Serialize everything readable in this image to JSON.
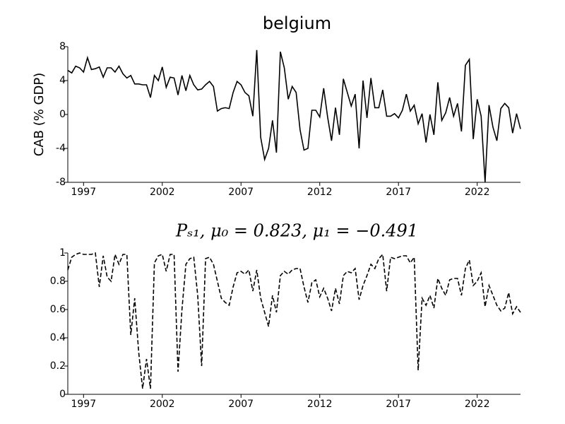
{
  "chart_data": [
    {
      "type": "line",
      "title": "belgium",
      "ylabel": "CAB (% GDP)",
      "color": "#000000",
      "linestyle": "solid",
      "xlim": [
        1996,
        2024.75
      ],
      "xticks": [
        1997,
        2002,
        2007,
        2012,
        2017,
        2022
      ],
      "ylim": [
        -8,
        8
      ],
      "yticks": [
        -8,
        -4,
        0,
        4,
        8
      ],
      "x": [
        1996,
        1996.25,
        1996.5,
        1996.75,
        1997,
        1997.25,
        1997.5,
        1997.75,
        1998,
        1998.25,
        1998.5,
        1998.75,
        1999,
        1999.25,
        1999.5,
        1999.75,
        2000,
        2000.25,
        2000.5,
        2000.75,
        2001,
        2001.25,
        2001.5,
        2001.75,
        2002,
        2002.25,
        2002.5,
        2002.75,
        2003,
        2003.25,
        2003.5,
        2003.75,
        2004,
        2004.25,
        2004.5,
        2004.75,
        2005,
        2005.25,
        2005.5,
        2005.75,
        2006,
        2006.25,
        2006.5,
        2006.75,
        2007,
        2007.25,
        2007.5,
        2007.75,
        2008,
        2008.25,
        2008.5,
        2008.75,
        2009,
        2009.25,
        2009.5,
        2009.75,
        2010,
        2010.25,
        2010.5,
        2010.75,
        2011,
        2011.25,
        2011.5,
        2011.75,
        2012,
        2012.25,
        2012.5,
        2012.75,
        2013,
        2013.25,
        2013.5,
        2013.75,
        2014,
        2014.25,
        2014.5,
        2014.75,
        2015,
        2015.25,
        2015.5,
        2015.75,
        2016,
        2016.25,
        2016.5,
        2016.75,
        2017,
        2017.25,
        2017.5,
        2017.75,
        2018,
        2018.25,
        2018.5,
        2018.75,
        2019,
        2019.25,
        2019.5,
        2019.75,
        2020,
        2020.25,
        2020.5,
        2020.75,
        2021,
        2021.25,
        2021.5,
        2021.75,
        2022,
        2022.25,
        2022.5,
        2022.75,
        2023,
        2023.25,
        2023.5,
        2023.75,
        2024,
        2024.25,
        2024.5,
        2024.75
      ],
      "values": [
        5.2,
        4.9,
        5.7,
        5.5,
        5.0,
        6.7,
        5.3,
        5.4,
        5.6,
        4.4,
        5.5,
        5.5,
        5.0,
        5.7,
        4.8,
        4.3,
        4.6,
        3.6,
        3.6,
        3.5,
        3.5,
        2.0,
        4.6,
        4.0,
        5.6,
        3.2,
        4.4,
        4.3,
        2.3,
        4.6,
        2.8,
        4.6,
        3.5,
        2.9,
        3.0,
        3.5,
        3.9,
        3.3,
        0.4,
        0.7,
        0.8,
        0.7,
        2.6,
        3.9,
        3.5,
        2.6,
        2.2,
        -0.2,
        7.6,
        -2.7,
        -5.3,
        -4.0,
        -0.7,
        -4.5,
        7.4,
        5.5,
        1.8,
        3.3,
        2.6,
        -1.8,
        -4.2,
        -4.0,
        0.5,
        0.5,
        -0.3,
        3.1,
        -0.3,
        -3.1,
        0.8,
        -2.4,
        4.2,
        2.6,
        1.0,
        2.4,
        -4.0,
        4.0,
        -0.4,
        4.3,
        0.8,
        0.8,
        2.9,
        -0.2,
        -0.2,
        0.1,
        -0.4,
        0.5,
        2.4,
        0.4,
        1.1,
        -1.1,
        0.1,
        -3.3,
        0.0,
        -2.4,
        3.8,
        -0.7,
        0.2,
        2.0,
        -0.2,
        1.3,
        -2.0,
        5.8,
        6.5,
        -2.9,
        1.8,
        -0.2,
        -8.0,
        1.1,
        -1.5,
        -3.1,
        0.7,
        1.3,
        0.8,
        -2.2,
        0.1,
        -1.7
      ]
    },
    {
      "type": "line",
      "title": "Pₛ₁, μ₀ = 0.823, μ₁ = −0.491",
      "color": "#000000",
      "linestyle": "dashed",
      "xlim": [
        1996,
        2024.75
      ],
      "xticks": [
        1997,
        2002,
        2007,
        2012,
        2017,
        2022
      ],
      "ylim": [
        0,
        1
      ],
      "yticks": [
        0,
        0.2,
        0.4,
        0.6,
        0.8,
        1
      ],
      "x": [
        1996,
        1996.25,
        1996.5,
        1996.75,
        1997,
        1997.25,
        1997.5,
        1997.75,
        1998,
        1998.25,
        1998.5,
        1998.75,
        1999,
        1999.25,
        1999.5,
        1999.75,
        2000,
        2000.25,
        2000.5,
        2000.75,
        2001,
        2001.25,
        2001.5,
        2001.75,
        2002,
        2002.25,
        2002.5,
        2002.75,
        2003,
        2003.25,
        2003.5,
        2003.75,
        2004,
        2004.25,
        2004.5,
        2004.75,
        2005,
        2005.25,
        2005.5,
        2005.75,
        2006,
        2006.25,
        2006.5,
        2006.75,
        2007,
        2007.25,
        2007.5,
        2007.75,
        2008,
        2008.25,
        2008.5,
        2008.75,
        2009,
        2009.25,
        2009.5,
        2009.75,
        2010,
        2010.25,
        2010.5,
        2010.75,
        2011,
        2011.25,
        2011.5,
        2011.75,
        2012,
        2012.25,
        2012.5,
        2012.75,
        2013,
        2013.25,
        2013.5,
        2013.75,
        2014,
        2014.25,
        2014.5,
        2014.75,
        2015,
        2015.25,
        2015.5,
        2015.75,
        2016,
        2016.25,
        2016.5,
        2016.75,
        2017,
        2017.25,
        2017.5,
        2017.75,
        2018,
        2018.25,
        2018.5,
        2018.75,
        2019,
        2019.25,
        2019.5,
        2019.75,
        2020,
        2020.25,
        2020.5,
        2020.75,
        2021,
        2021.25,
        2021.5,
        2021.75,
        2022,
        2022.25,
        2022.5,
        2022.75,
        2023,
        2023.25,
        2023.5,
        2023.75,
        2024,
        2024.25,
        2024.5,
        2024.75
      ],
      "values": [
        0.88,
        0.97,
        0.99,
        1.0,
        0.99,
        0.99,
        0.99,
        1.0,
        0.76,
        0.98,
        0.83,
        0.8,
        0.99,
        0.92,
        0.99,
        0.99,
        0.42,
        0.68,
        0.3,
        0.04,
        0.25,
        0.04,
        0.93,
        0.98,
        0.99,
        0.87,
        0.99,
        0.99,
        0.16,
        0.6,
        0.92,
        0.96,
        0.97,
        0.7,
        0.2,
        0.96,
        0.97,
        0.92,
        0.8,
        0.68,
        0.65,
        0.63,
        0.76,
        0.86,
        0.87,
        0.85,
        0.88,
        0.73,
        0.88,
        0.68,
        0.58,
        0.48,
        0.7,
        0.58,
        0.84,
        0.87,
        0.85,
        0.88,
        0.89,
        0.89,
        0.76,
        0.65,
        0.79,
        0.81,
        0.69,
        0.75,
        0.68,
        0.59,
        0.75,
        0.64,
        0.84,
        0.87,
        0.86,
        0.89,
        0.67,
        0.77,
        0.84,
        0.92,
        0.89,
        0.96,
        0.99,
        0.73,
        0.97,
        0.96,
        0.97,
        0.98,
        0.98,
        0.93,
        0.97,
        0.17,
        0.68,
        0.63,
        0.7,
        0.61,
        0.82,
        0.75,
        0.7,
        0.81,
        0.82,
        0.82,
        0.7,
        0.89,
        0.95,
        0.77,
        0.8,
        0.86,
        0.62,
        0.77,
        0.7,
        0.63,
        0.59,
        0.61,
        0.72,
        0.57,
        0.62,
        0.58
      ]
    }
  ]
}
